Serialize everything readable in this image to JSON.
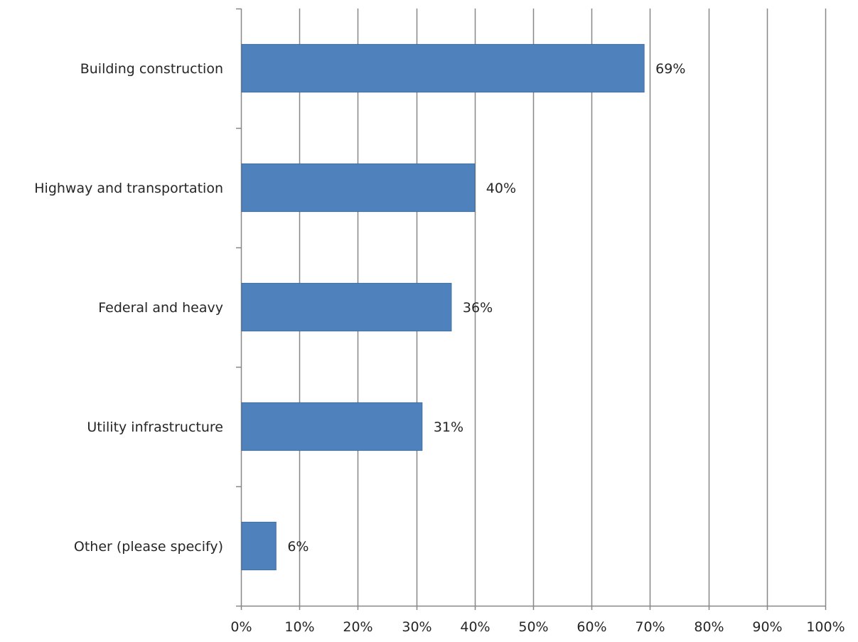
{
  "chart_data": {
    "type": "bar",
    "orientation": "horizontal",
    "categories": [
      "Building construction",
      "Highway and transportation",
      "Federal and heavy",
      "Utility infrastructure",
      "Other (please specify)"
    ],
    "values": [
      69,
      40,
      36,
      31,
      6
    ],
    "data_labels": [
      "69%",
      "40%",
      "36%",
      "31%",
      "6%"
    ],
    "x_ticks": [
      "0%",
      "10%",
      "20%",
      "30%",
      "40%",
      "50%",
      "60%",
      "70%",
      "80%",
      "90%",
      "100%"
    ],
    "xlim": [
      0,
      100
    ],
    "grid": true,
    "legend": "none",
    "title": "",
    "xlabel": "",
    "ylabel": ""
  },
  "colors": {
    "bar": "#4F81BD",
    "bar_edge": "#41709F",
    "grid": "#878787",
    "axis": "#878787",
    "text": "#262626"
  }
}
